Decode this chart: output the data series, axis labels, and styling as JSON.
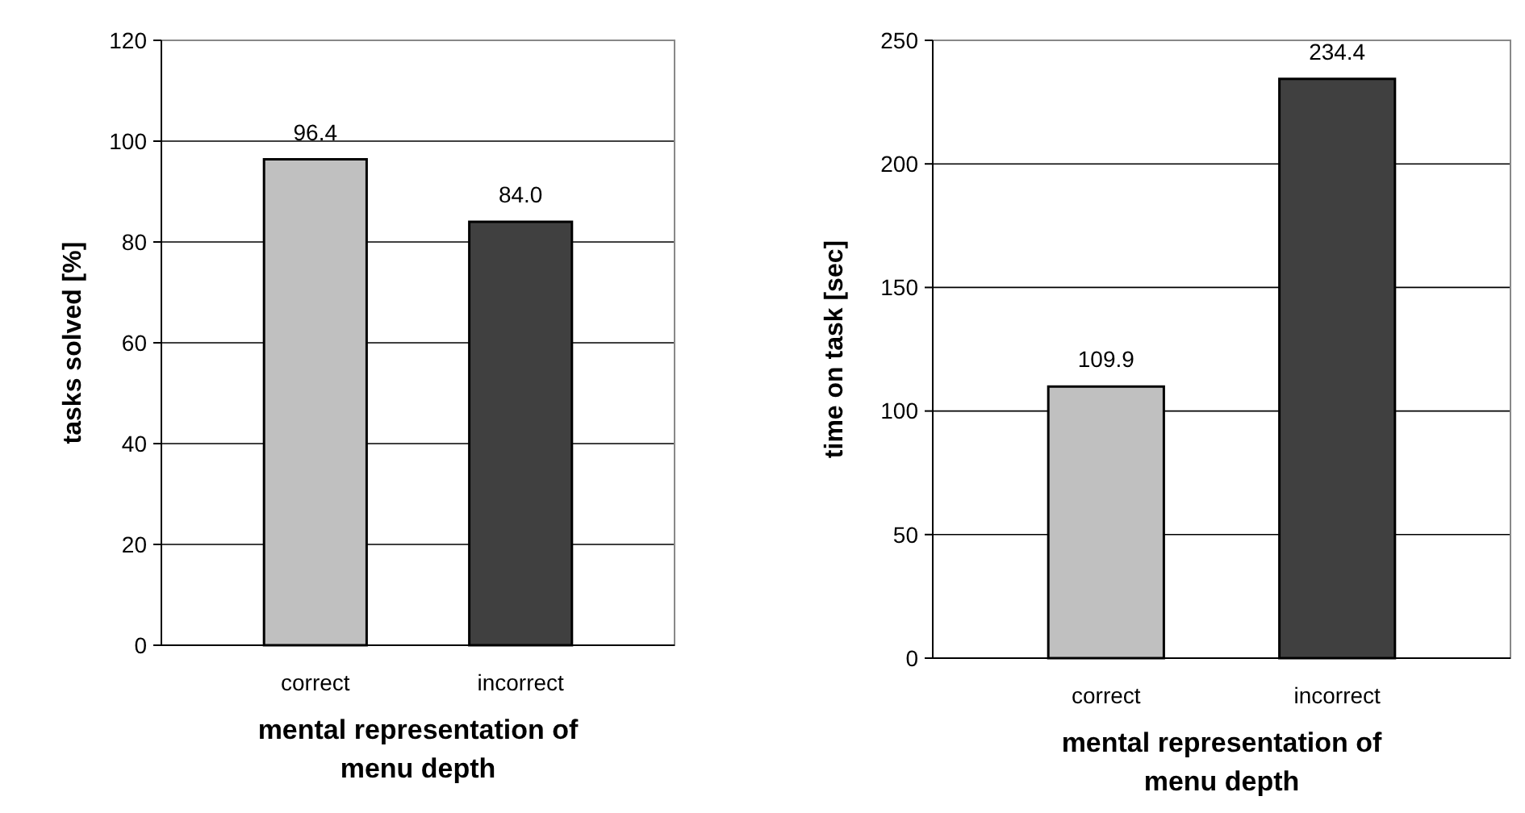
{
  "chart_data": [
    {
      "type": "bar",
      "categories": [
        "correct",
        "incorrect"
      ],
      "values": [
        96.4,
        84.0
      ],
      "value_labels": [
        "96.4",
        "84.0"
      ],
      "colors": [
        "#c0c0c0",
        "#404040"
      ],
      "ylim": [
        0,
        120
      ],
      "yticks": [
        0,
        20,
        40,
        60,
        80,
        100,
        120
      ],
      "grid": "y",
      "xlabel": "mental representation of\nmenu depth",
      "ylabel": "tasks solved [%]"
    },
    {
      "type": "bar",
      "categories": [
        "correct",
        "incorrect"
      ],
      "values": [
        109.9,
        234.4
      ],
      "value_labels": [
        "109.9",
        "234.4"
      ],
      "colors": [
        "#c0c0c0",
        "#404040"
      ],
      "ylim": [
        0,
        250
      ],
      "yticks": [
        0,
        50,
        100,
        150,
        200,
        250
      ],
      "grid": "y",
      "xlabel": "mental representation of\nmenu depth",
      "ylabel": "time on task [sec]"
    }
  ]
}
